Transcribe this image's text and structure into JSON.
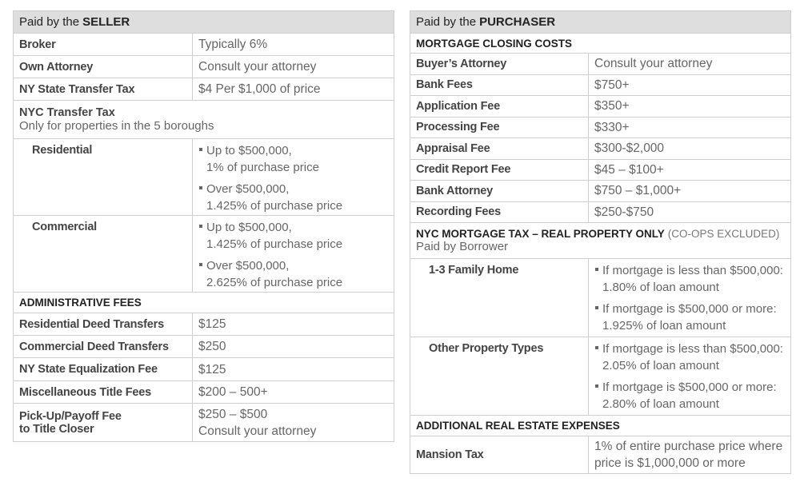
{
  "seller": {
    "header_prefix": "Paid by the",
    "header_party": "SELLER",
    "rows": [
      [
        "Broker",
        "Typically 6%"
      ],
      [
        "Own Attorney",
        "Consult your attorney"
      ],
      [
        "NY State Transfer Tax",
        "$4 Per $1,000 of price"
      ]
    ],
    "nyc_transfer_tax": {
      "title": "NYC Transfer Tax",
      "note": "Only for properties in the 5 boroughs",
      "items": [
        {
          "label": "Residential",
          "bullets": [
            [
              "Up to $500,000,",
              "1% of purchase price"
            ],
            [
              "Over $500,000,",
              "1.425% of purchase price"
            ]
          ]
        },
        {
          "label": "Commercial",
          "bullets": [
            [
              "Up to $500,000,",
              "1.425% of purchase price"
            ],
            [
              "Over $500,000,",
              "2.625% of purchase price"
            ]
          ]
        }
      ]
    },
    "admin": {
      "title": "ADMINISTRATIVE FEES",
      "rows": [
        [
          "Residential Deed Transfers",
          "$125"
        ],
        [
          "Commercial Deed Transfers",
          "$250"
        ],
        [
          "NY State Equalization Fee",
          "$125"
        ],
        [
          "Miscellaneous Title Fees",
          "$200 – 500+"
        ],
        [
          [
            "Pick-Up/Payoff Fee",
            "to Title Closer"
          ],
          [
            "$250 – $500",
            "Consult your attorney"
          ]
        ]
      ]
    }
  },
  "purchaser": {
    "header_prefix": "Paid by the",
    "header_party": "PURCHASER",
    "closing": {
      "title": "MORTGAGE CLOSING COSTS",
      "rows": [
        [
          "Buyer’s Attorney",
          "Consult your attorney"
        ],
        [
          "Bank Fees",
          "$750+"
        ],
        [
          "Application Fee",
          "$350+"
        ],
        [
          "Processing Fee",
          "$330+"
        ],
        [
          "Appraisal Fee",
          "$300-$2,000"
        ],
        [
          "Credit Report Fee",
          "$45 – $100+"
        ],
        [
          "Bank Attorney",
          "$750 – $1,000+"
        ],
        [
          "Recording Fees",
          "$250-$750"
        ]
      ]
    },
    "nyc_mortgage_tax": {
      "title": "NYC MORTGAGE TAX – REAL PROPERTY ONLY",
      "title_note": "(CO-OPS EXCLUDED)",
      "note": "Paid by Borrower",
      "items": [
        {
          "label": "1-3 Family Home",
          "bullets": [
            [
              "If mortgage is less than $500,000:",
              "1.80% of loan amount"
            ],
            [
              "If mortgage is $500,000 or more:",
              "1.925% of loan amount"
            ]
          ]
        },
        {
          "label": "Other Property Types",
          "bullets": [
            [
              "If mortgage is less than $500,000:",
              "2.05% of loan amount"
            ],
            [
              "If mortgage is $500,000 or more:",
              "2.80% of loan amount"
            ]
          ]
        }
      ]
    },
    "additional": {
      "title": "ADDITIONAL REAL ESTATE EXPENSES",
      "rows": [
        [
          "Mansion Tax",
          [
            "1% of entire purchase price where",
            "price is $1,000,000 or more"
          ]
        ]
      ]
    }
  }
}
